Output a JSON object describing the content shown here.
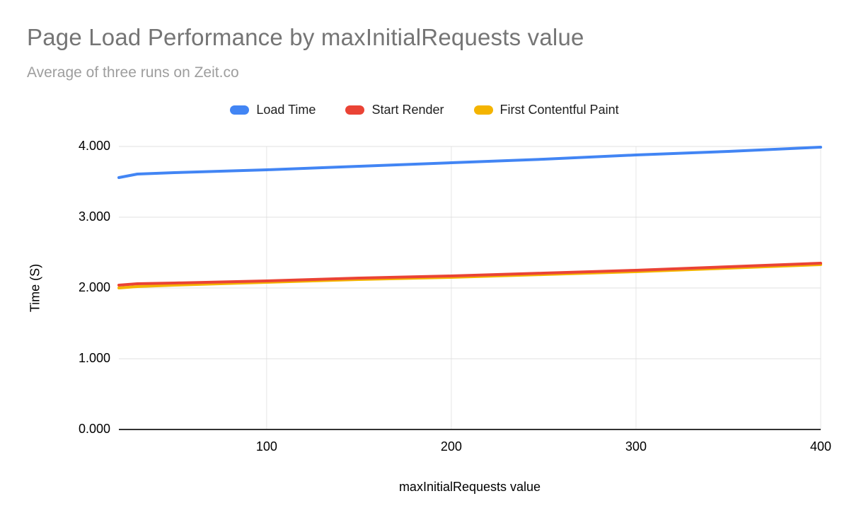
{
  "chart_data": {
    "type": "line",
    "title": "Page Load Performance by maxInitialRequests value",
    "subtitle": "Average of three runs on Zeit.co",
    "xlabel": "maxInitialRequests value",
    "ylabel": "Time (S)",
    "x": [
      20,
      30,
      50,
      100,
      150,
      200,
      250,
      300,
      350,
      400
    ],
    "series": [
      {
        "name": "Load Time",
        "color": "#4285F4",
        "values": [
          3.56,
          3.61,
          3.63,
          3.67,
          3.72,
          3.77,
          3.82,
          3.88,
          3.93,
          3.99
        ]
      },
      {
        "name": "Start Render",
        "color": "#EA4335",
        "values": [
          2.04,
          2.06,
          2.07,
          2.1,
          2.14,
          2.17,
          2.21,
          2.25,
          2.3,
          2.35
        ]
      },
      {
        "name": "First Contentful Paint",
        "color": "#F4B400",
        "values": [
          2.0,
          2.02,
          2.04,
          2.08,
          2.12,
          2.15,
          2.19,
          2.23,
          2.28,
          2.33
        ]
      }
    ],
    "xlim": [
      20,
      400
    ],
    "ylim": [
      0,
      4
    ],
    "xticks": [
      100,
      200,
      300,
      400
    ],
    "yticks": [
      0,
      1,
      2,
      3,
      4
    ],
    "y_tick_decimals": 3,
    "grid": {
      "horizontal": true,
      "vertical": true
    },
    "legend_position": "top",
    "colors": {
      "title": "#757575",
      "subtitle": "#9e9e9e",
      "grid_h": "#e0e0e0",
      "grid_v": "#e6e6e6",
      "baseline": "#333333",
      "tick_label": "#000000",
      "legend_label": "#212121"
    }
  }
}
